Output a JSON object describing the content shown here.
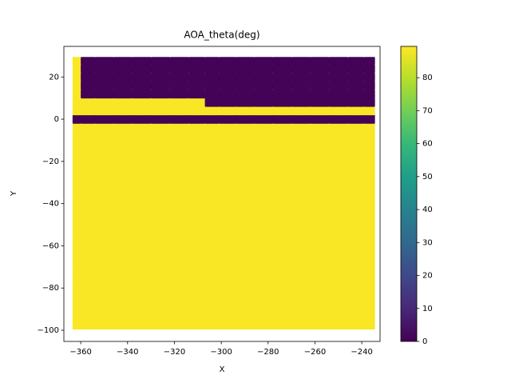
{
  "chart_data": {
    "type": "scatter",
    "title": "AOA_theta(deg)",
    "x_label": "X",
    "y_label": "Y",
    "x": [
      -362,
      -358,
      -350,
      -342,
      -334,
      -326,
      -318,
      -310,
      -304,
      -298,
      -290,
      -282,
      -274,
      -266,
      -258,
      -250,
      -242,
      -236
    ],
    "y": [
      -98,
      -90,
      -82,
      -74,
      -66,
      -58,
      -50,
      -42,
      -34,
      -26,
      -18,
      -10,
      -4,
      0,
      4,
      8,
      12,
      16,
      20,
      24,
      28
    ],
    "values": [
      [
        89,
        89,
        89,
        89,
        89,
        89,
        89,
        89,
        89,
        89,
        89,
        89,
        89,
        89,
        89,
        89,
        89,
        89
      ],
      [
        89,
        89,
        89,
        89,
        89,
        89,
        89,
        89,
        89,
        89,
        89,
        89,
        89,
        89,
        89,
        89,
        89,
        89
      ],
      [
        89,
        89,
        89,
        89,
        89,
        89,
        89,
        89,
        89,
        89,
        89,
        89,
        89,
        89,
        89,
        89,
        89,
        89
      ],
      [
        89,
        89,
        89,
        89,
        89,
        89,
        89,
        89,
        89,
        89,
        89,
        89,
        89,
        89,
        89,
        89,
        89,
        89
      ],
      [
        89,
        89,
        89,
        89,
        89,
        89,
        89,
        89,
        89,
        89,
        89,
        89,
        89,
        89,
        89,
        89,
        89,
        89
      ],
      [
        89,
        89,
        89,
        89,
        89,
        89,
        89,
        89,
        89,
        89,
        89,
        89,
        89,
        89,
        89,
        89,
        89,
        89
      ],
      [
        89,
        89,
        89,
        89,
        89,
        89,
        89,
        89,
        89,
        89,
        89,
        89,
        89,
        89,
        89,
        89,
        89,
        89
      ],
      [
        89,
        89,
        89,
        89,
        89,
        89,
        89,
        89,
        89,
        89,
        89,
        89,
        89,
        89,
        89,
        89,
        89,
        89
      ],
      [
        89,
        89,
        89,
        89,
        89,
        89,
        89,
        89,
        89,
        89,
        89,
        89,
        89,
        89,
        89,
        89,
        89,
        89
      ],
      [
        89,
        89,
        89,
        89,
        89,
        89,
        89,
        89,
        89,
        89,
        89,
        89,
        89,
        89,
        89,
        89,
        89,
        89
      ],
      [
        89,
        89,
        89,
        89,
        89,
        89,
        89,
        89,
        89,
        89,
        89,
        89,
        89,
        89,
        89,
        89,
        89,
        89
      ],
      [
        89,
        89,
        89,
        89,
        89,
        89,
        89,
        89,
        89,
        89,
        89,
        89,
        89,
        89,
        89,
        89,
        89,
        89
      ],
      [
        89,
        89,
        89,
        89,
        89,
        89,
        89,
        89,
        89,
        89,
        89,
        89,
        89,
        89,
        89,
        89,
        89,
        89
      ],
      [
        0.5,
        0.5,
        0.5,
        0.5,
        0.5,
        0.5,
        0.5,
        0.5,
        0.5,
        0.5,
        0.5,
        0.5,
        0.5,
        0.5,
        0.5,
        0.5,
        0.5,
        0.5
      ],
      [
        89,
        89,
        89,
        89,
        89,
        89,
        89,
        89,
        89,
        89,
        89,
        89,
        89,
        89,
        89,
        89,
        89,
        89
      ],
      [
        89,
        89,
        89,
        89,
        89,
        89,
        89,
        89,
        0.5,
        0.5,
        0.5,
        0.5,
        0.5,
        0.5,
        0.5,
        0.5,
        0.5,
        0.5
      ],
      [
        89,
        0.5,
        0.5,
        0.5,
        0.5,
        0.5,
        0.5,
        0.5,
        0.5,
        0.5,
        0.5,
        0.5,
        0.5,
        0.5,
        0.5,
        0.5,
        0.5,
        0.5
      ],
      [
        89,
        0.5,
        0.5,
        0.5,
        0.5,
        0.5,
        0.5,
        0.5,
        0.5,
        0.5,
        0.5,
        0.5,
        0.5,
        0.5,
        0.5,
        0.5,
        0.5,
        0.5
      ],
      [
        89,
        0.5,
        0.5,
        0.5,
        0.5,
        0.5,
        0.5,
        0.5,
        0.5,
        0.5,
        0.5,
        0.5,
        0.5,
        0.5,
        0.5,
        0.5,
        0.5,
        0.5
      ],
      [
        89,
        0.5,
        0.5,
        0.5,
        0.5,
        0.5,
        0.5,
        0.5,
        0.5,
        0.5,
        0.5,
        0.5,
        0.5,
        0.5,
        0.5,
        0.5,
        0.5,
        0.5
      ],
      [
        89,
        0.5,
        0.5,
        0.5,
        0.5,
        0.5,
        0.5,
        0.5,
        0.5,
        0.5,
        0.5,
        0.5,
        0.5,
        0.5,
        0.5,
        0.5,
        0.5,
        0.5
      ]
    ],
    "colormap": "viridis",
    "clim": [
      0,
      89.5
    ],
    "cticks": [
      0,
      10,
      20,
      30,
      40,
      50,
      60,
      70,
      80
    ],
    "xlim": [
      -367.2,
      -232.2
    ],
    "xticks": [
      {
        "value": -360,
        "label": "−360"
      },
      {
        "value": -340,
        "label": "−340"
      },
      {
        "value": -320,
        "label": "−320"
      },
      {
        "value": -300,
        "label": "−300"
      },
      {
        "value": -280,
        "label": "−280"
      },
      {
        "value": -260,
        "label": "−260"
      },
      {
        "value": -240,
        "label": "−240"
      }
    ],
    "ylim": [
      -105.3,
      34.5
    ],
    "yticks": [
      {
        "value": -100,
        "label": "−100"
      },
      {
        "value": -80,
        "label": "−80"
      },
      {
        "value": -60,
        "label": "−60"
      },
      {
        "value": -40,
        "label": "−40"
      },
      {
        "value": -20,
        "label": "−20"
      },
      0,
      20
    ]
  }
}
